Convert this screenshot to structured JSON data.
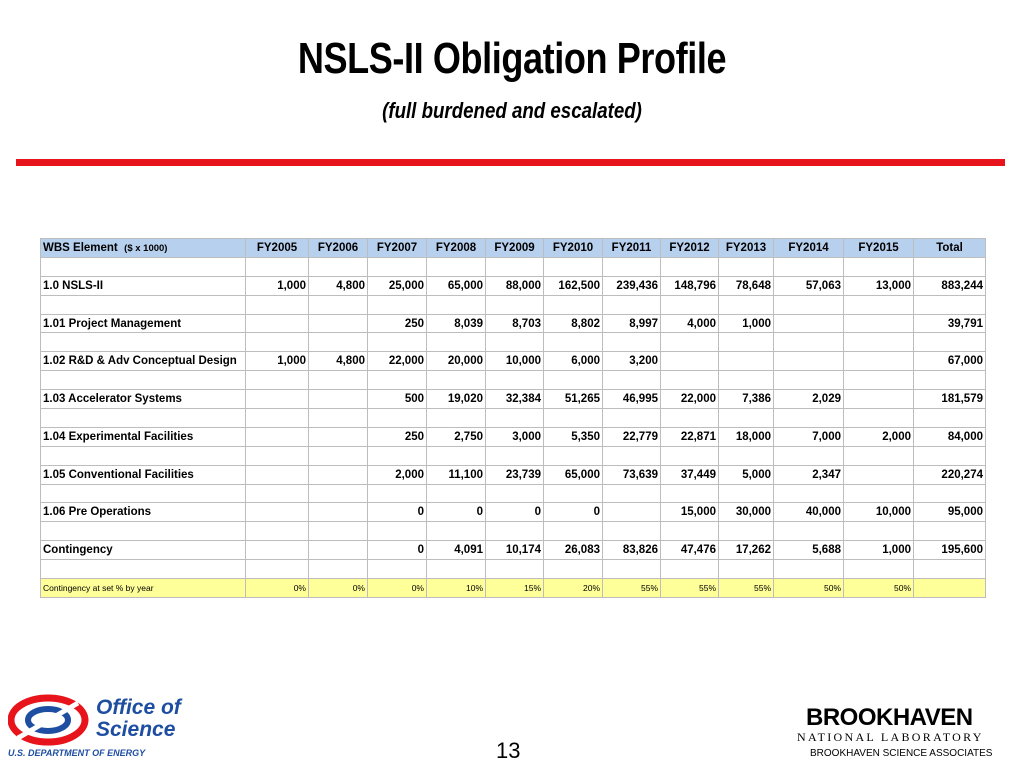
{
  "header": {
    "title": "NSLS-II Obligation Profile",
    "subtitle": "(full burdened and escalated)"
  },
  "table": {
    "columns": [
      "WBS Element",
      "FY2005",
      "FY2006",
      "FY2007",
      "FY2008",
      "FY2009",
      "FY2010",
      "FY2011",
      "FY2012",
      "FY2013",
      "FY2014",
      "FY2015",
      "Total"
    ],
    "unit": "($ x 1000)",
    "rows": [
      [
        "1.0 NSLS-II",
        "1,000",
        "4,800",
        "25,000",
        "65,000",
        "88,000",
        "162,500",
        "239,436",
        "148,796",
        "78,648",
        "57,063",
        "13,000",
        "883,244"
      ],
      [
        "1.01 Project Management",
        null,
        null,
        "250",
        "8,039",
        "8,703",
        "8,802",
        "8,997",
        "4,000",
        "1,000",
        null,
        null,
        "39,791"
      ],
      [
        "1.02 R&D & Adv Conceptual Design",
        "1,000",
        "4,800",
        "22,000",
        "20,000",
        "10,000",
        "6,000",
        "3,200",
        null,
        null,
        null,
        null,
        "67,000"
      ],
      [
        "1.03 Accelerator Systems",
        null,
        null,
        "500",
        "19,020",
        "32,384",
        "51,265",
        "46,995",
        "22,000",
        "7,386",
        "2,029",
        null,
        "181,579"
      ],
      [
        "1.04 Experimental Facilities",
        null,
        null,
        "250",
        "2,750",
        "3,000",
        "5,350",
        "22,779",
        "22,871",
        "18,000",
        "7,000",
        "2,000",
        "84,000"
      ],
      [
        "1.05 Conventional Facilities",
        null,
        null,
        "2,000",
        "11,100",
        "23,739",
        "65,000",
        "73,639",
        "37,449",
        "5,000",
        "2,347",
        null,
        "220,274"
      ],
      [
        "1.06 Pre Operations",
        null,
        null,
        "0",
        "0",
        "0",
        "0",
        null,
        "15,000",
        "30,000",
        "40,000",
        "10,000",
        "95,000"
      ],
      [
        "Contingency",
        null,
        null,
        "0",
        "4,091",
        "10,174",
        "26,083",
        "83,826",
        "47,476",
        "17,262",
        "5,688",
        "1,000",
        "195,600"
      ]
    ],
    "contingency_row": [
      "Contingency at set % by year",
      "0%",
      "0%",
      "0%",
      "10%",
      "15%",
      "20%",
      "55%",
      "55%",
      "55%",
      "50%",
      "50%",
      null
    ]
  },
  "footer": {
    "doe_line1": "Office of",
    "doe_line2": "Science",
    "doe_line3": "U.S. DEPARTMENT OF ENERGY",
    "page": "13",
    "bnl_line1": "BROOKHAVEN",
    "bnl_line2": "NATIONAL LABORATORY",
    "bnl_line3": "BROOKHAVEN SCIENCE ASSOCIATES"
  }
}
